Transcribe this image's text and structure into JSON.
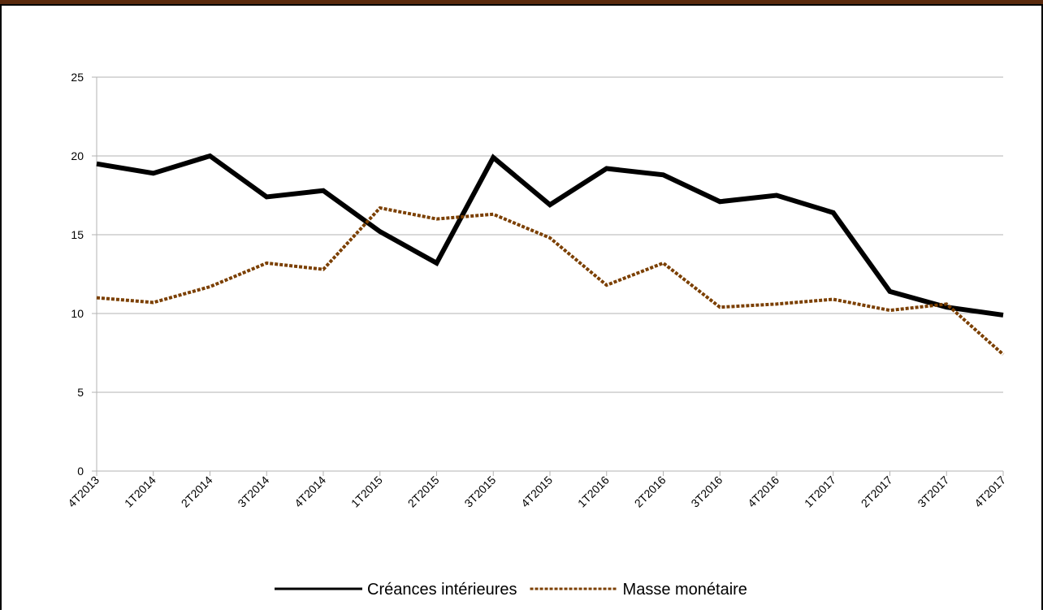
{
  "chart_data": {
    "type": "line",
    "categories": [
      "4T2013",
      "1T2014",
      "2T2014",
      "3T2014",
      "4T2014",
      "1T2015",
      "2T2015",
      "3T2015",
      "4T2015",
      "1T2016",
      "2T2016",
      "3T2016",
      "4T2016",
      "1T2017",
      "2T2017",
      "3T2017",
      "4T2017"
    ],
    "series": [
      {
        "name": "Créances intérieures",
        "color": "#000000",
        "values": [
          19.5,
          18.9,
          20.0,
          17.4,
          17.8,
          15.2,
          13.2,
          19.9,
          16.9,
          19.2,
          18.8,
          17.1,
          17.5,
          16.4,
          11.4,
          10.4,
          9.9
        ]
      },
      {
        "name": "Masse monétaire",
        "color": "#7b3f00",
        "values": [
          11.0,
          10.7,
          11.7,
          13.2,
          12.8,
          16.7,
          16.0,
          16.3,
          14.8,
          11.8,
          13.2,
          10.4,
          10.6,
          10.9,
          10.2,
          10.6,
          7.4
        ]
      }
    ],
    "ylim": [
      0,
      25
    ],
    "yticks": [
      0,
      5,
      10,
      15,
      20,
      25
    ],
    "grid": true,
    "legend": "bottom"
  }
}
